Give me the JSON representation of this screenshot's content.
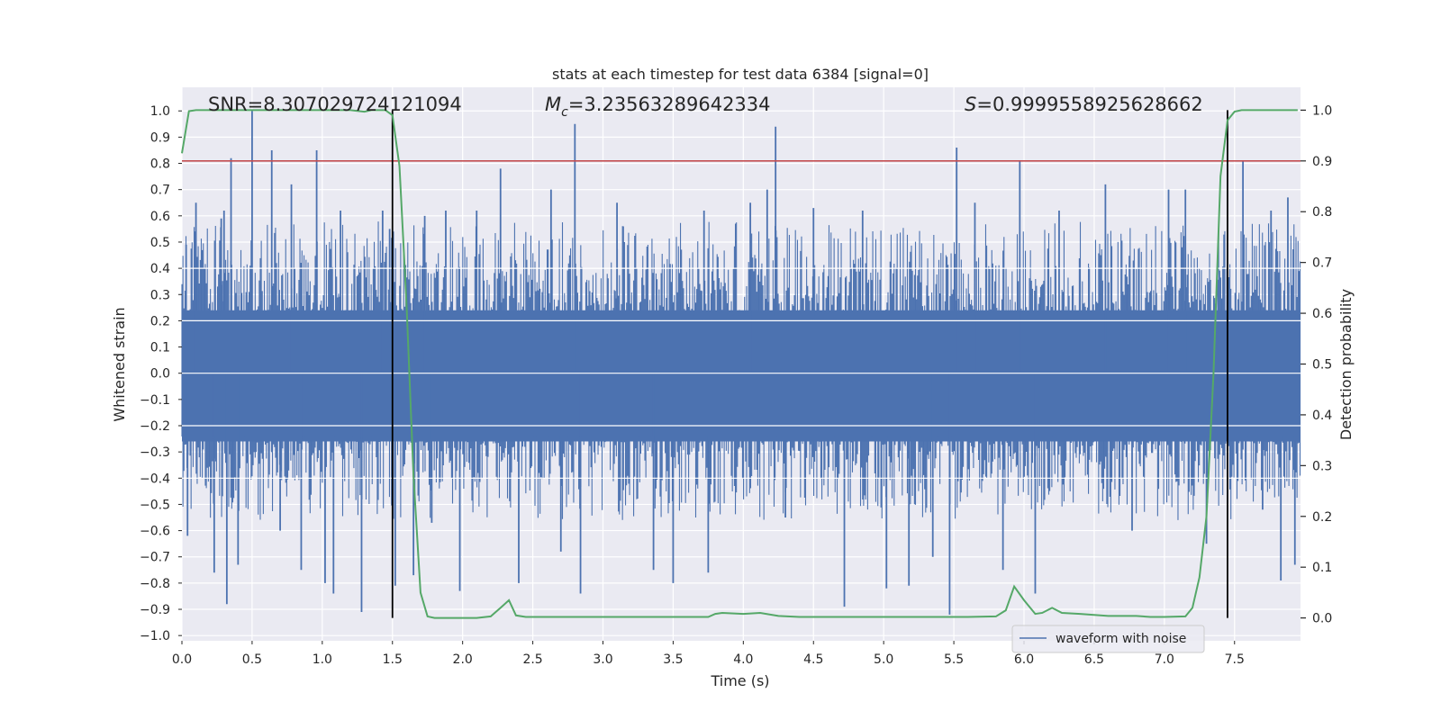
{
  "chart_data": {
    "type": "line",
    "title": "stats at each timestep for test data 6384 [signal=0]",
    "xlabel": "Time (s)",
    "ylabel": "Whitened strain",
    "y2label": "Detection probability",
    "xlim": [
      0.0,
      7.97
    ],
    "ylim": [
      -1.02,
      1.09
    ],
    "y2lim": [
      -0.045,
      1.045
    ],
    "x_ticks": [
      "0.0",
      "0.5",
      "1.0",
      "1.5",
      "2.0",
      "2.5",
      "3.0",
      "3.5",
      "4.0",
      "4.5",
      "5.0",
      "5.5",
      "6.0",
      "6.5",
      "7.0",
      "7.5"
    ],
    "y_ticks": [
      "1.0",
      "0.9",
      "0.8",
      "0.7",
      "0.6",
      "0.5",
      "0.4",
      "0.3",
      "0.2",
      "0.1",
      "0.0",
      "−0.1",
      "−0.2",
      "−0.3",
      "−0.4",
      "−0.5",
      "−0.6",
      "−0.7",
      "−0.8",
      "−0.9",
      "−1.0"
    ],
    "y2_ticks": [
      "1.0",
      "0.9",
      "0.8",
      "0.7",
      "0.6",
      "0.5",
      "0.4",
      "0.3",
      "0.2",
      "0.1",
      "0.0"
    ],
    "grid": true,
    "legend": {
      "location": "lower-right",
      "entries": [
        "waveform with noise"
      ]
    },
    "stats": {
      "snr": "SNR=8.307029724121094",
      "mc_symbol": "M",
      "mc_sub": "c",
      "mc_value": "=3.23563289642334",
      "s_symbol": "S",
      "s_value": "=0.9999558925628662"
    },
    "threshold": 0.9,
    "vlines_x": [
      1.5,
      7.45
    ],
    "waveform_spikes": [
      {
        "x": 0.03,
        "y": 0.49
      },
      {
        "x": 0.04,
        "y": -0.62
      },
      {
        "x": 0.1,
        "y": 0.65
      },
      {
        "x": 0.16,
        "y": 0.4
      },
      {
        "x": 0.23,
        "y": -0.76
      },
      {
        "x": 0.28,
        "y": 0.59
      },
      {
        "x": 0.3,
        "y": 0.62
      },
      {
        "x": 0.32,
        "y": -0.88
      },
      {
        "x": 0.35,
        "y": 0.82
      },
      {
        "x": 0.4,
        "y": -0.73
      },
      {
        "x": 0.5,
        "y": 1.0
      },
      {
        "x": 0.64,
        "y": 0.85
      },
      {
        "x": 0.7,
        "y": -0.6
      },
      {
        "x": 0.78,
        "y": 0.72
      },
      {
        "x": 0.85,
        "y": -0.75
      },
      {
        "x": 0.96,
        "y": 0.85
      },
      {
        "x": 1.02,
        "y": -0.8
      },
      {
        "x": 1.08,
        "y": -0.84
      },
      {
        "x": 1.13,
        "y": 0.62
      },
      {
        "x": 1.28,
        "y": -0.91
      },
      {
        "x": 1.43,
        "y": 0.62
      },
      {
        "x": 1.48,
        "y": 0.55
      },
      {
        "x": 1.52,
        "y": -0.81
      },
      {
        "x": 1.65,
        "y": -0.77
      },
      {
        "x": 1.73,
        "y": 0.6
      },
      {
        "x": 1.78,
        "y": -0.57
      },
      {
        "x": 1.88,
        "y": 0.62
      },
      {
        "x": 1.98,
        "y": -0.83
      },
      {
        "x": 2.1,
        "y": 0.62
      },
      {
        "x": 2.27,
        "y": 0.78
      },
      {
        "x": 2.4,
        "y": -0.8
      },
      {
        "x": 2.63,
        "y": 0.7
      },
      {
        "x": 2.7,
        "y": -0.68
      },
      {
        "x": 2.8,
        "y": 0.95
      },
      {
        "x": 2.84,
        "y": -0.84
      },
      {
        "x": 3.1,
        "y": 0.65
      },
      {
        "x": 3.36,
        "y": -0.75
      },
      {
        "x": 3.5,
        "y": -0.8
      },
      {
        "x": 3.72,
        "y": 0.62
      },
      {
        "x": 3.75,
        "y": -0.76
      },
      {
        "x": 4.05,
        "y": 0.65
      },
      {
        "x": 4.17,
        "y": 0.7
      },
      {
        "x": 4.23,
        "y": 0.94
      },
      {
        "x": 4.3,
        "y": -0.55
      },
      {
        "x": 4.5,
        "y": 0.63
      },
      {
        "x": 4.72,
        "y": -0.89
      },
      {
        "x": 4.85,
        "y": 0.62
      },
      {
        "x": 5.02,
        "y": -0.82
      },
      {
        "x": 5.18,
        "y": -0.81
      },
      {
        "x": 5.35,
        "y": -0.7
      },
      {
        "x": 5.47,
        "y": -0.92
      },
      {
        "x": 5.52,
        "y": 0.86
      },
      {
        "x": 5.65,
        "y": 0.65
      },
      {
        "x": 5.85,
        "y": -0.75
      },
      {
        "x": 5.97,
        "y": 0.81
      },
      {
        "x": 6.08,
        "y": -0.84
      },
      {
        "x": 6.25,
        "y": 0.62
      },
      {
        "x": 6.58,
        "y": 0.72
      },
      {
        "x": 6.77,
        "y": -0.6
      },
      {
        "x": 7.03,
        "y": 0.7
      },
      {
        "x": 7.15,
        "y": 0.7
      },
      {
        "x": 7.3,
        "y": -0.65
      },
      {
        "x": 7.56,
        "y": 0.81
      },
      {
        "x": 7.7,
        "y": -0.52
      },
      {
        "x": 7.76,
        "y": 0.62
      },
      {
        "x": 7.83,
        "y": -0.79
      },
      {
        "x": 7.88,
        "y": 0.67
      },
      {
        "x": 7.93,
        "y": -0.73
      }
    ],
    "probability": {
      "x": [
        0.0,
        0.05,
        0.1,
        0.2,
        0.3,
        0.4,
        0.5,
        0.6,
        0.7,
        0.8,
        0.9,
        1.0,
        1.1,
        1.2,
        1.3,
        1.35,
        1.4,
        1.45,
        1.5,
        1.55,
        1.6,
        1.65,
        1.7,
        1.75,
        1.8,
        1.85,
        1.9,
        2.0,
        2.1,
        2.2,
        2.27,
        2.33,
        2.38,
        2.45,
        2.6,
        2.8,
        3.0,
        3.2,
        3.4,
        3.6,
        3.75,
        3.8,
        3.85,
        4.0,
        4.12,
        4.25,
        4.4,
        4.6,
        4.8,
        5.0,
        5.2,
        5.4,
        5.6,
        5.8,
        5.87,
        5.93,
        6.0,
        6.08,
        6.13,
        6.2,
        6.27,
        6.4,
        6.6,
        6.8,
        6.9,
        7.0,
        7.15,
        7.2,
        7.25,
        7.3,
        7.35,
        7.4,
        7.45,
        7.5,
        7.55,
        7.65,
        7.8,
        7.95
      ],
      "y": [
        0.915,
        0.998,
        1.0,
        1.0,
        1.0,
        1.0,
        1.0,
        1.0,
        1.0,
        1.0,
        1.0,
        1.0,
        1.0,
        1.0,
        0.997,
        1.0,
        1.0,
        1.0,
        0.99,
        0.89,
        0.62,
        0.28,
        0.05,
        0.003,
        0.0,
        0.0,
        0.0,
        0.0,
        0.0,
        0.003,
        0.02,
        0.035,
        0.005,
        0.002,
        0.002,
        0.002,
        0.002,
        0.002,
        0.002,
        0.002,
        0.002,
        0.008,
        0.01,
        0.008,
        0.01,
        0.004,
        0.002,
        0.002,
        0.002,
        0.002,
        0.002,
        0.002,
        0.002,
        0.003,
        0.015,
        0.062,
        0.035,
        0.008,
        0.01,
        0.02,
        0.01,
        0.008,
        0.004,
        0.004,
        0.002,
        0.002,
        0.003,
        0.02,
        0.08,
        0.2,
        0.48,
        0.87,
        0.98,
        0.997,
        1.0,
        1.0,
        1.0,
        1.0
      ]
    },
    "colors": {
      "background": "#eaeaf2",
      "grid": "#ffffff",
      "waveform": "#4c72b0",
      "probability": "#55a868",
      "threshold": "#c44e52",
      "vline": "#000000"
    }
  }
}
